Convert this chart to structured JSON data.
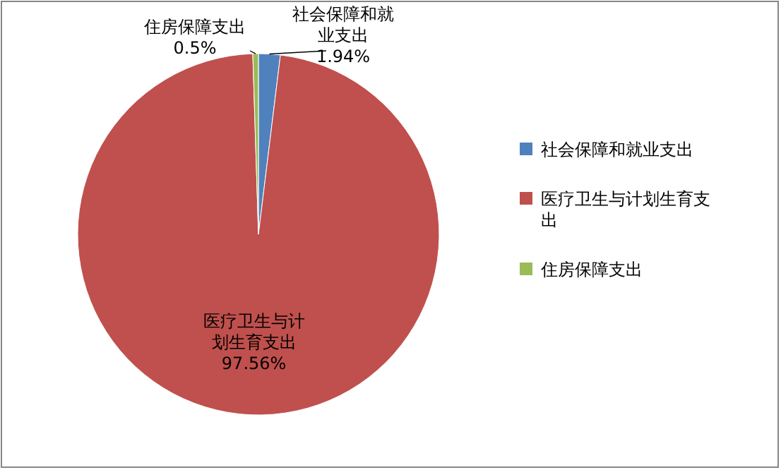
{
  "chart_data": {
    "type": "pie",
    "categories": [
      "社会保障和就业支出",
      "医疗卫生与计划生育支出",
      "住房保障支出"
    ],
    "values": [
      1.94,
      97.56,
      0.5
    ],
    "colors": [
      "#4f81bd",
      "#c0504d",
      "#9bbb59"
    ],
    "value_labels": [
      "1.94%",
      "97.56%",
      "0.5%"
    ],
    "legend": "right"
  }
}
